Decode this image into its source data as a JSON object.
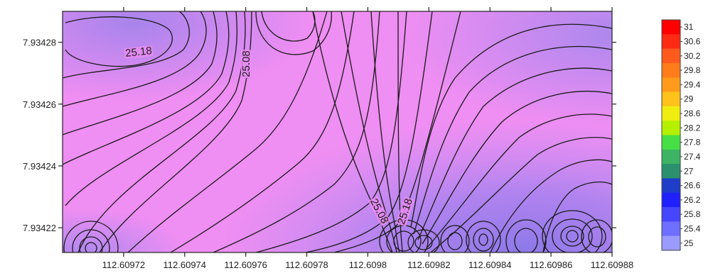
{
  "chart_data": {
    "type": "heatmap",
    "subtype": "contour map",
    "title": "",
    "xlabel": "",
    "ylabel": "",
    "x_ticks": [
      "112.60972",
      "112.60974",
      "112.60976",
      "112.60978",
      "112.6098",
      "112.60982",
      "112.60984",
      "112.60986",
      "112.60988"
    ],
    "y_ticks": [
      "7.93428",
      "7.93426",
      "7.93424",
      "7.93422"
    ],
    "x_range": [
      112.6097,
      112.60988
    ],
    "y_range": [
      7.934212,
      7.93429
    ],
    "contour_labels": [
      {
        "text": "25.18",
        "x": 112.609725,
        "y": 7.934276
      },
      {
        "text": "25.08",
        "x": 112.609761,
        "y": 7.934273
      },
      {
        "text": "25.08",
        "x": 112.609803,
        "y": 7.934225
      },
      {
        "text": "25.18",
        "x": 112.609813,
        "y": 7.934225
      }
    ],
    "colorbar": {
      "min": 25,
      "max": 31,
      "labels": [
        "31",
        "30.6",
        "30.2",
        "29.8",
        "29.4",
        "29",
        "28.6",
        "28.2",
        "27.8",
        "27.4",
        "27",
        "26.6",
        "26.2",
        "25.8",
        "25.4",
        "25"
      ],
      "colors": [
        "#ff0000",
        "#ff2a14",
        "#ff5a1e",
        "#ff7c1a",
        "#ff9a1a",
        "#ffc21a",
        "#f0ee10",
        "#b4f000",
        "#46e046",
        "#3cb464",
        "#2a906e",
        "#1f3dc8",
        "#2020ff",
        "#4646ff",
        "#6e6eff",
        "#9a9aff"
      ]
    }
  }
}
